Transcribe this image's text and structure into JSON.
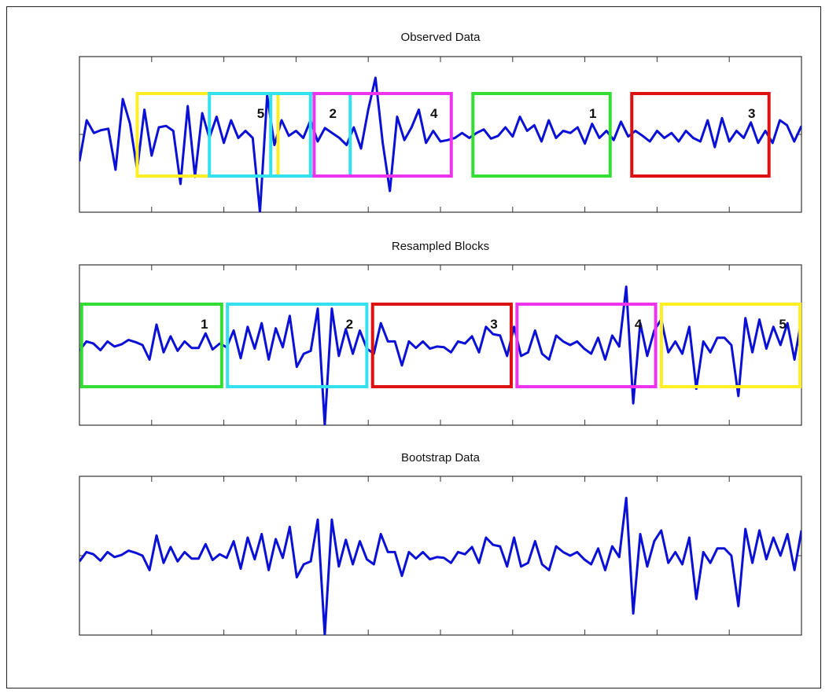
{
  "chart_data": [
    {
      "type": "line",
      "title": "Observed Data",
      "xlim": [
        0,
        100
      ],
      "ylim": [
        -1.1,
        1.1
      ],
      "colors": {
        "line": "#0a10d6",
        "axes": "#333333"
      },
      "series": [
        {
          "values": [
            -0.38,
            0.2,
            0.02,
            0.06,
            0.08,
            -0.5,
            0.5,
            0.15,
            -0.5,
            0.35,
            -0.3,
            0.1,
            0.12,
            0.05,
            -0.7,
            0.4,
            -0.6,
            0.3,
            -0.05,
            0.25,
            -0.12,
            0.2,
            -0.05,
            0.05,
            -0.05,
            -1.1,
            0.55,
            -0.15,
            0.2,
            -0.02,
            0.05,
            -0.05,
            0.2,
            -0.1,
            0.09,
            0.02,
            -0.05,
            -0.15,
            0.1,
            -0.2,
            0.35,
            0.8,
            -0.12,
            -0.8,
            0.25,
            -0.08,
            0.1,
            0.35,
            -0.12,
            0.05,
            -0.1,
            -0.08,
            -0.05,
            0.02,
            -0.05,
            0.02,
            0.07,
            -0.06,
            -0.02,
            0.1,
            -0.03,
            0.25,
            0.05,
            0.13,
            -0.1,
            0.2,
            -0.05,
            0.05,
            0.02,
            0.1,
            -0.13,
            0.15,
            -0.05,
            0.05,
            -0.08,
            0.18,
            -0.03,
            0.05,
            -0.02,
            -0.1,
            0.05,
            -0.05,
            0.02,
            -0.1,
            0.05,
            -0.05,
            -0.1,
            0.2,
            -0.18,
            0.23,
            -0.1,
            0.05,
            -0.05,
            0.17,
            -0.12,
            0.05,
            -0.12,
            0.2,
            0.13,
            -0.1,
            0.12
          ]
        }
      ],
      "blocks": [
        {
          "label": "5",
          "x0": 8,
          "x1": 27.5,
          "color": "#ffee22"
        },
        {
          "label": "",
          "x0": 18,
          "x1": 32,
          "color": "#33e0ee"
        },
        {
          "label": "2",
          "x0": 26.5,
          "x1": 37.5,
          "color": "#33e0ee"
        },
        {
          "label": "4",
          "x0": 32.5,
          "x1": 51.5,
          "color": "#ee33ee"
        },
        {
          "label": "1",
          "x0": 54.5,
          "x1": 73.5,
          "color": "#33dd33"
        },
        {
          "label": "3",
          "x0": 76.5,
          "x1": 95.5,
          "color": "#dd1111"
        }
      ]
    },
    {
      "type": "line",
      "title": "Resampled Blocks",
      "xlim": [
        0,
        100
      ],
      "ylim": [
        -1.1,
        1.1
      ],
      "colors": {
        "line": "#0a10d6",
        "axes": "#333333"
      },
      "series": [
        {
          "values": [
            -0.08,
            0.05,
            0.02,
            -0.07,
            0.05,
            -0.02,
            0.01,
            0.07,
            0.04,
            0.0,
            -0.2,
            0.28,
            -0.1,
            0.12,
            -0.08,
            0.05,
            -0.04,
            -0.04,
            0.16,
            -0.06,
            0.02,
            -0.03,
            0.2,
            -0.18,
            0.25,
            -0.05,
            0.3,
            -0.2,
            0.23,
            -0.03,
            0.4,
            -0.3,
            -0.12,
            -0.08,
            0.5,
            -1.1,
            0.5,
            -0.15,
            0.22,
            -0.12,
            0.2,
            -0.05,
            -0.12,
            0.3,
            0.05,
            0.05,
            -0.28,
            0.05,
            -0.04,
            0.05,
            -0.05,
            -0.02,
            -0.03,
            -0.1,
            0.05,
            0.02,
            0.12,
            -0.1,
            0.25,
            0.15,
            0.13,
            -0.15,
            0.25,
            -0.15,
            -0.1,
            0.2,
            -0.12,
            -0.2,
            0.13,
            0.05,
            0.0,
            0.05,
            -0.05,
            -0.12,
            0.1,
            -0.2,
            0.13,
            -0.02,
            0.8,
            -0.8,
            0.3,
            -0.15,
            0.2,
            0.35,
            -0.1,
            0.05,
            -0.12,
            0.25,
            -0.6,
            0.05,
            -0.1,
            0.1,
            0.1,
            0.0,
            -0.7,
            0.37,
            -0.1,
            0.35,
            -0.05,
            0.25,
            0.0,
            0.3,
            -0.2,
            0.35
          ]
        }
      ],
      "blocks": [
        {
          "label": "1",
          "x0": 0.3,
          "x1": 19.7,
          "color": "#33dd33"
        },
        {
          "label": "2",
          "x0": 20.5,
          "x1": 39.8,
          "color": "#33e0ee"
        },
        {
          "label": "3",
          "x0": 40.6,
          "x1": 59.8,
          "color": "#dd1111"
        },
        {
          "label": "4",
          "x0": 60.6,
          "x1": 79.8,
          "color": "#ee33ee"
        },
        {
          "label": "5",
          "x0": 80.6,
          "x1": 99.8,
          "color": "#ffee22"
        }
      ]
    },
    {
      "type": "line",
      "title": "Bootstrap Data",
      "xlim": [
        0,
        100
      ],
      "ylim": [
        -1.1,
        1.1
      ],
      "colors": {
        "line": "#0a10d6",
        "axes": "#333333"
      },
      "series": [
        {
          "values": [
            -0.08,
            0.05,
            0.02,
            -0.07,
            0.05,
            -0.02,
            0.01,
            0.07,
            0.04,
            0.0,
            -0.2,
            0.28,
            -0.1,
            0.12,
            -0.08,
            0.05,
            -0.04,
            -0.04,
            0.16,
            -0.06,
            0.02,
            -0.03,
            0.2,
            -0.18,
            0.25,
            -0.05,
            0.3,
            -0.2,
            0.23,
            -0.03,
            0.4,
            -0.3,
            -0.12,
            -0.08,
            0.5,
            -1.1,
            0.5,
            -0.15,
            0.22,
            -0.12,
            0.2,
            -0.05,
            -0.12,
            0.3,
            0.05,
            0.05,
            -0.28,
            0.05,
            -0.04,
            0.05,
            -0.05,
            -0.02,
            -0.03,
            -0.1,
            0.05,
            0.02,
            0.12,
            -0.1,
            0.25,
            0.15,
            0.13,
            -0.15,
            0.25,
            -0.15,
            -0.1,
            0.2,
            -0.12,
            -0.2,
            0.13,
            0.05,
            0.0,
            0.05,
            -0.05,
            -0.12,
            0.1,
            -0.2,
            0.13,
            -0.02,
            0.8,
            -0.8,
            0.3,
            -0.15,
            0.2,
            0.35,
            -0.1,
            0.05,
            -0.12,
            0.25,
            -0.6,
            0.05,
            -0.1,
            0.1,
            0.1,
            0.0,
            -0.7,
            0.37,
            -0.1,
            0.35,
            -0.05,
            0.25,
            0.0,
            0.3,
            -0.2,
            0.35
          ]
        }
      ],
      "blocks": []
    }
  ]
}
